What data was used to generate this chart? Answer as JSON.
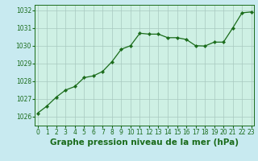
{
  "x": [
    0,
    1,
    2,
    3,
    4,
    5,
    6,
    7,
    8,
    9,
    10,
    11,
    12,
    13,
    14,
    15,
    16,
    17,
    18,
    19,
    20,
    21,
    22,
    23
  ],
  "y": [
    1026.2,
    1026.6,
    1027.1,
    1027.5,
    1027.7,
    1028.2,
    1028.3,
    1028.55,
    1029.1,
    1029.8,
    1030.0,
    1030.7,
    1030.65,
    1030.65,
    1030.45,
    1030.45,
    1030.35,
    1030.0,
    1029.98,
    1030.2,
    1030.2,
    1031.0,
    1031.85,
    1031.9
  ],
  "line_color": "#1a6b1a",
  "marker_color": "#1a6b1a",
  "bg_color": "#c8eaf0",
  "plot_bg_color": "#cef0e4",
  "grid_color": "#a8c8c0",
  "xlabel": "Graphe pression niveau de la mer (hPa)",
  "xlabel_fontsize": 7.5,
  "ylim": [
    1025.5,
    1032.3
  ],
  "xlim": [
    -0.3,
    23.3
  ],
  "yticks": [
    1026,
    1027,
    1028,
    1029,
    1030,
    1031,
    1032
  ],
  "xticks": [
    0,
    1,
    2,
    3,
    4,
    5,
    6,
    7,
    8,
    9,
    10,
    11,
    12,
    13,
    14,
    15,
    16,
    17,
    18,
    19,
    20,
    21,
    22,
    23
  ],
  "tick_fontsize": 5.5,
  "line_width": 0.9,
  "marker_size": 2.2,
  "marker_style": "D"
}
